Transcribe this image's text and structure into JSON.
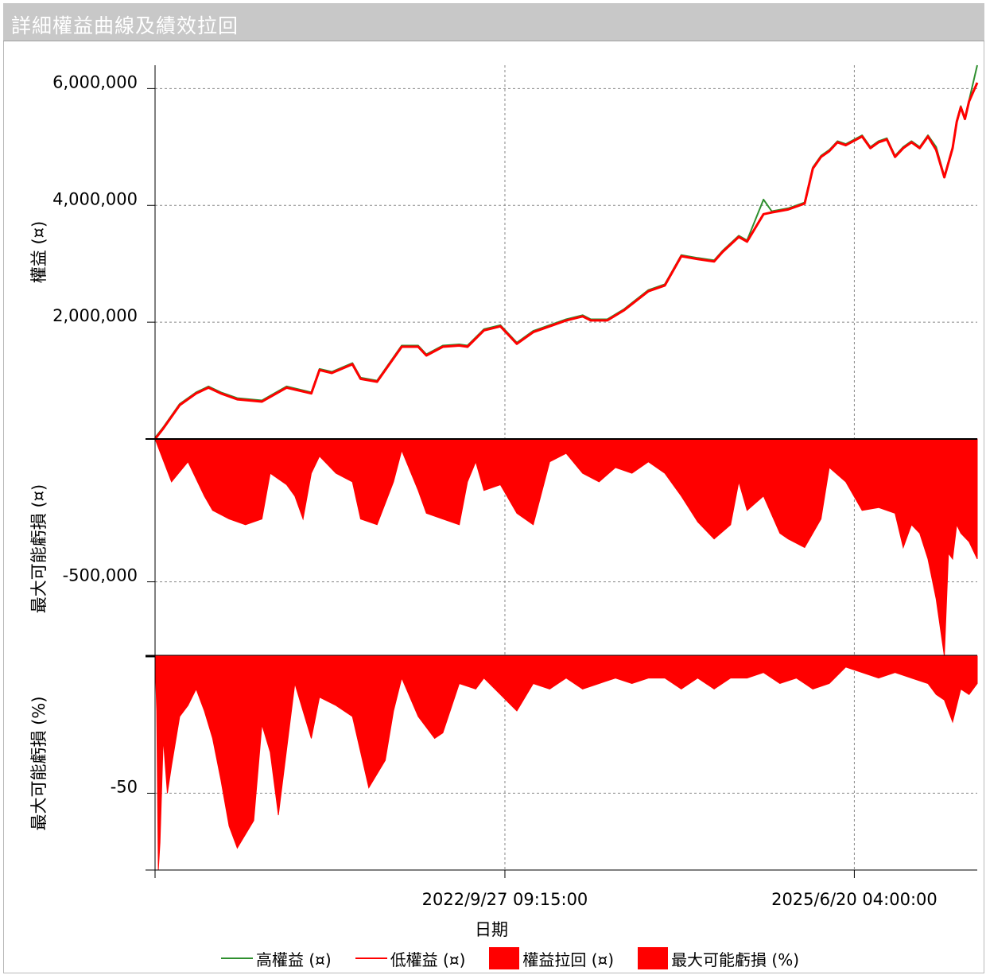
{
  "window": {
    "title": "詳細權益曲線及績效拉回"
  },
  "colors": {
    "high": "#2f8f2f",
    "low": "#ff0000",
    "fill": "#ff0000",
    "grid": "#888888",
    "axis": "#000000"
  },
  "legend": [
    {
      "label": "高權益 (¤)",
      "kind": "line",
      "color": "#2f8f2f"
    },
    {
      "label": "低權益 (¤)",
      "kind": "line",
      "color": "#ff0000"
    },
    {
      "label": "權益拉回 (¤)",
      "kind": "box",
      "color": "#ff0000"
    },
    {
      "label": "最大可能虧損 (%)",
      "kind": "box",
      "color": "#ff0000"
    }
  ],
  "chart_data": [
    {
      "type": "line",
      "ylabel": "權益 (¤)",
      "yticks": [
        "2,000,000",
        "4,000,000",
        "6,000,000"
      ],
      "ytick_values": [
        2000000,
        4000000,
        6000000
      ],
      "ylim": [
        0,
        6400000
      ],
      "series": [
        {
          "name": "高權益 (¤)",
          "color": "#2f8f2f",
          "x": [
            0,
            0.01,
            0.03,
            0.05,
            0.065,
            0.08,
            0.1,
            0.13,
            0.16,
            0.19,
            0.2,
            0.215,
            0.24,
            0.25,
            0.27,
            0.3,
            0.32,
            0.33,
            0.35,
            0.37,
            0.38,
            0.4,
            0.42,
            0.44,
            0.46,
            0.47,
            0.5,
            0.52,
            0.53,
            0.55,
            0.57,
            0.6,
            0.62,
            0.64,
            0.66,
            0.68,
            0.69,
            0.71,
            0.72,
            0.74,
            0.75,
            0.77,
            0.79,
            0.8,
            0.81,
            0.82,
            0.83,
            0.84,
            0.86,
            0.87,
            0.88,
            0.89,
            0.9,
            0.91,
            0.92,
            0.93,
            0.94,
            0.95,
            0.96,
            0.97,
            0.975,
            0.98,
            0.985,
            0.99,
            1.0
          ],
          "y": [
            20000,
            200000,
            600000,
            800000,
            900000,
            800000,
            700000,
            660000,
            900000,
            800000,
            1200000,
            1150000,
            1300000,
            1050000,
            1000000,
            1600000,
            1600000,
            1450000,
            1600000,
            1620000,
            1600000,
            1880000,
            1950000,
            1650000,
            1850000,
            1900000,
            2050000,
            2120000,
            2050000,
            2050000,
            2220000,
            2550000,
            2650000,
            3150000,
            3100000,
            3060000,
            3220000,
            3480000,
            3400000,
            4100000,
            3900000,
            3950000,
            4050000,
            4650000,
            4850000,
            4950000,
            5100000,
            5050000,
            5200000,
            5000000,
            5100000,
            5150000,
            4850000,
            5000000,
            5100000,
            5000000,
            5200000,
            5000000,
            4500000,
            5000000,
            5450000,
            5700000,
            5500000,
            5800000,
            6400000
          ]
        },
        {
          "name": "低權益 (¤)",
          "color": "#ff0000",
          "x": [
            0,
            0.01,
            0.03,
            0.05,
            0.065,
            0.08,
            0.1,
            0.13,
            0.16,
            0.19,
            0.2,
            0.215,
            0.24,
            0.25,
            0.27,
            0.3,
            0.32,
            0.33,
            0.35,
            0.37,
            0.38,
            0.4,
            0.42,
            0.44,
            0.46,
            0.47,
            0.5,
            0.52,
            0.53,
            0.55,
            0.57,
            0.6,
            0.62,
            0.64,
            0.66,
            0.68,
            0.69,
            0.71,
            0.72,
            0.74,
            0.75,
            0.77,
            0.79,
            0.8,
            0.81,
            0.82,
            0.83,
            0.84,
            0.86,
            0.87,
            0.88,
            0.89,
            0.9,
            0.91,
            0.92,
            0.93,
            0.94,
            0.95,
            0.96,
            0.97,
            0.975,
            0.98,
            0.985,
            0.99,
            1.0
          ],
          "y": [
            0,
            180000,
            580000,
            780000,
            880000,
            780000,
            680000,
            640000,
            880000,
            780000,
            1180000,
            1130000,
            1280000,
            1030000,
            980000,
            1580000,
            1580000,
            1430000,
            1580000,
            1600000,
            1580000,
            1860000,
            1930000,
            1630000,
            1830000,
            1880000,
            2030000,
            2100000,
            2030000,
            2030000,
            2200000,
            2530000,
            2630000,
            3130000,
            3080000,
            3040000,
            3200000,
            3460000,
            3380000,
            3850000,
            3880000,
            3930000,
            4030000,
            4630000,
            4830000,
            4930000,
            5080000,
            5030000,
            5180000,
            4980000,
            5080000,
            5130000,
            4830000,
            4980000,
            5080000,
            4980000,
            5180000,
            4950000,
            4480000,
            4980000,
            5430000,
            5680000,
            5480000,
            5780000,
            6100000
          ]
        }
      ]
    },
    {
      "type": "area",
      "ylabel": "最大可能虧損 (¤)",
      "yticks": [
        "-500,000"
      ],
      "ytick_values": [
        -500000
      ],
      "ylim": [
        -760000,
        0
      ],
      "series": [
        {
          "name": "權益拉回 (¤)",
          "color": "#ff0000",
          "x": [
            0,
            0.02,
            0.04,
            0.06,
            0.07,
            0.09,
            0.11,
            0.13,
            0.14,
            0.16,
            0.17,
            0.18,
            0.19,
            0.2,
            0.22,
            0.24,
            0.25,
            0.27,
            0.29,
            0.3,
            0.32,
            0.33,
            0.35,
            0.37,
            0.38,
            0.39,
            0.4,
            0.42,
            0.44,
            0.46,
            0.48,
            0.5,
            0.52,
            0.54,
            0.56,
            0.58,
            0.6,
            0.62,
            0.63,
            0.64,
            0.66,
            0.68,
            0.7,
            0.71,
            0.72,
            0.74,
            0.76,
            0.77,
            0.79,
            0.81,
            0.82,
            0.84,
            0.86,
            0.88,
            0.9,
            0.91,
            0.92,
            0.93,
            0.94,
            0.95,
            0.96,
            0.965,
            0.97,
            0.975,
            0.98,
            0.99,
            1.0
          ],
          "y": [
            0,
            -150000,
            -80000,
            -200000,
            -250000,
            -280000,
            -300000,
            -280000,
            -120000,
            -160000,
            -200000,
            -280000,
            -120000,
            -60000,
            -120000,
            -150000,
            -280000,
            -300000,
            -150000,
            -40000,
            -180000,
            -260000,
            -280000,
            -300000,
            -150000,
            -80000,
            -180000,
            -160000,
            -260000,
            -300000,
            -80000,
            -50000,
            -120000,
            -150000,
            -100000,
            -120000,
            -80000,
            -120000,
            -160000,
            -200000,
            -290000,
            -350000,
            -300000,
            -150000,
            -250000,
            -200000,
            -330000,
            -350000,
            -380000,
            -280000,
            -100000,
            -150000,
            -250000,
            -240000,
            -260000,
            -380000,
            -300000,
            -330000,
            -420000,
            -560000,
            -760000,
            -400000,
            -420000,
            -300000,
            -330000,
            -360000,
            -420000
          ]
        }
      ]
    },
    {
      "type": "area",
      "ylabel": "最大可能虧損 (%)",
      "yticks": [
        "-50"
      ],
      "ytick_values": [
        -50
      ],
      "ylim": [
        -78,
        0
      ],
      "series": [
        {
          "name": "最大可能虧損 (%)",
          "color": "#ff0000",
          "x": [
            0,
            0.002,
            0.004,
            0.006,
            0.01,
            0.015,
            0.02,
            0.03,
            0.04,
            0.05,
            0.06,
            0.07,
            0.08,
            0.09,
            0.1,
            0.12,
            0.13,
            0.14,
            0.15,
            0.17,
            0.18,
            0.19,
            0.2,
            0.22,
            0.24,
            0.26,
            0.28,
            0.29,
            0.3,
            0.32,
            0.34,
            0.35,
            0.37,
            0.39,
            0.4,
            0.42,
            0.44,
            0.46,
            0.48,
            0.5,
            0.52,
            0.54,
            0.56,
            0.58,
            0.6,
            0.62,
            0.64,
            0.66,
            0.68,
            0.7,
            0.72,
            0.74,
            0.76,
            0.78,
            0.8,
            0.82,
            0.84,
            0.86,
            0.88,
            0.9,
            0.92,
            0.94,
            0.95,
            0.96,
            0.97,
            0.98,
            0.99,
            1.0
          ],
          "y": [
            0,
            -20,
            -78,
            -68,
            -30,
            -50,
            -40,
            -22,
            -18,
            -12,
            -20,
            -30,
            -45,
            -62,
            -70,
            -60,
            -25,
            -35,
            -58,
            -10,
            -20,
            -30,
            -15,
            -18,
            -22,
            -48,
            -38,
            -20,
            -8,
            -22,
            -30,
            -28,
            -10,
            -12,
            -8,
            -14,
            -20,
            -10,
            -12,
            -8,
            -12,
            -10,
            -8,
            -10,
            -8,
            -8,
            -12,
            -8,
            -12,
            -8,
            -8,
            -6,
            -10,
            -8,
            -12,
            -10,
            -4,
            -6,
            -8,
            -6,
            -8,
            -10,
            -14,
            -16,
            -24,
            -12,
            -14,
            -10
          ]
        }
      ]
    }
  ],
  "x_axis": {
    "xlabel": "日期",
    "ticks": [
      "2022/9/27 09:15:00",
      "2025/6/20 04:00:00"
    ],
    "tick_positions": [
      0.4255,
      0.8505
    ]
  }
}
